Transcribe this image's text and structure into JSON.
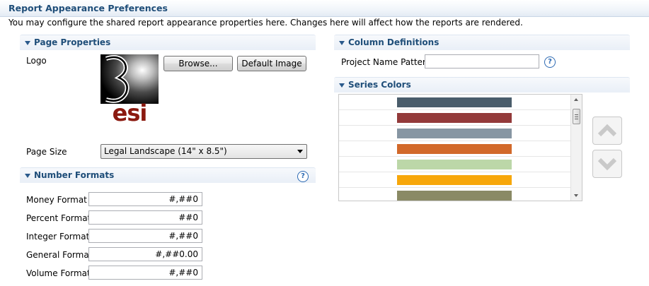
{
  "page": {
    "title": "Report Appearance Preferences",
    "description": "You may configure the shared report appearance properties here.  Changes here will affect how the reports are rendered."
  },
  "page_properties": {
    "title": "Page Properties",
    "logo_label": "Logo",
    "logo_text": "esi",
    "browse_label": "Browse...",
    "default_image_label": "Default Image",
    "page_size_label": "Page Size",
    "page_size_value": "Legal Landscape (14\" x 8.5\")"
  },
  "number_formats": {
    "title": "Number Formats",
    "help_glyph": "?",
    "fields": [
      {
        "label": "Money Format",
        "value": "#,##0"
      },
      {
        "label": "Percent Format",
        "value": "##0"
      },
      {
        "label": "Integer Format",
        "value": "#,##0"
      },
      {
        "label": "General Format",
        "value": "#,##0.00"
      },
      {
        "label": "Volume Format",
        "value": "#,##0"
      }
    ]
  },
  "column_definitions": {
    "title": "Column Definitions",
    "project_name_pattern_label": "Project Name Pattern",
    "project_name_pattern_value": "",
    "help_glyph": "?"
  },
  "series_colors": {
    "title": "Series Colors",
    "colors": [
      "#4a5d6b",
      "#933a3a",
      "#8796a3",
      "#d2692a",
      "#bcd7a8",
      "#f7a70b",
      "#8a8a65"
    ]
  },
  "icons": {
    "collapse": "triangle-down-icon",
    "help": "help-circle-icon",
    "move_up": "chevron-up-icon",
    "move_down": "chevron-down-icon"
  }
}
